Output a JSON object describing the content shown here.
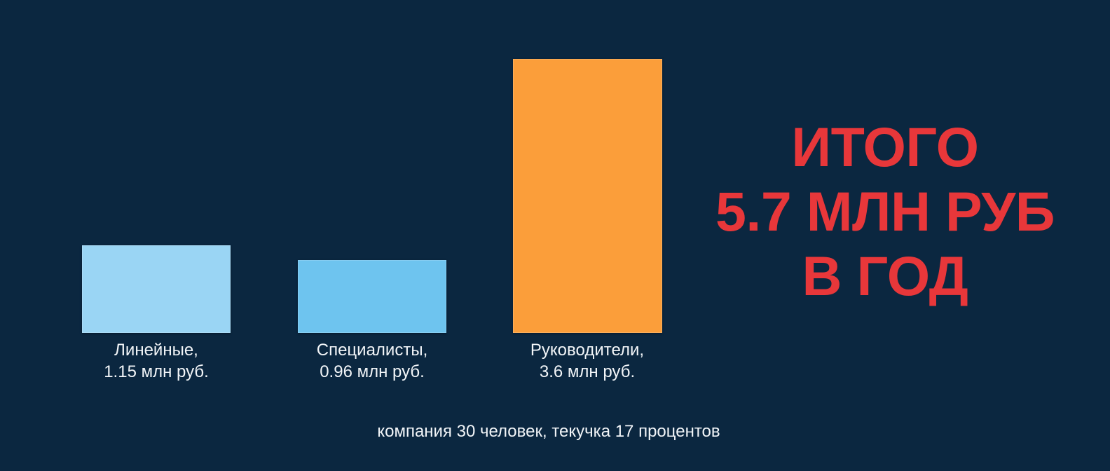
{
  "chart_data": {
    "type": "bar",
    "title": "",
    "xlabel": "",
    "ylabel": "",
    "grid": false,
    "legend": "none",
    "categories": [
      "Линейные",
      "Специалисты",
      "Руководители"
    ],
    "values": [
      1.15,
      0.96,
      3.6
    ],
    "units": "млн руб.",
    "colors": [
      "#9ad5f4",
      "#6ec4ef",
      "#fb9e3a"
    ],
    "labels": [
      {
        "name": "Линейные,",
        "value": "1.15 млн руб."
      },
      {
        "name": "Специалисты,",
        "value": "0.96 млн руб."
      },
      {
        "name": "Руководители,",
        "value": "3.6 млн руб."
      }
    ],
    "annotation": [
      "ИТОГО",
      "5.7 МЛН РУБ",
      "В ГОД"
    ],
    "annotation_color": "#e8373a",
    "footnote": "компания 30 человек, текучка 17 процентов"
  },
  "colors": {
    "background": "#0b2740",
    "text": "#f2f5f8"
  }
}
